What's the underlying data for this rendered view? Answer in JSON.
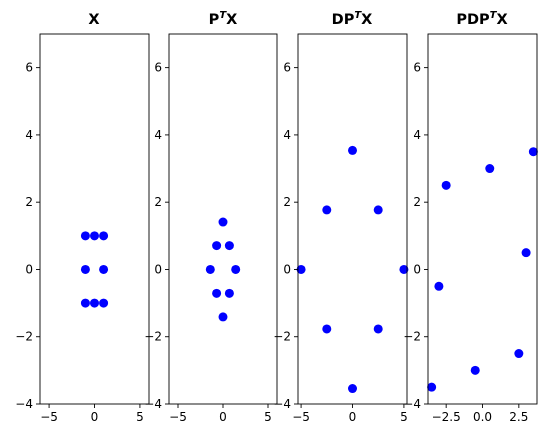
{
  "chart_data": [
    {
      "type": "scatter",
      "title": "X",
      "xlim": [
        -6,
        6
      ],
      "ylim": [
        -4,
        7
      ],
      "xticks": [
        -5,
        0,
        5
      ],
      "yticks": [
        -4,
        -2,
        0,
        2,
        4,
        6
      ],
      "xtick_labels": [
        "−5",
        "0",
        "5"
      ],
      "ytick_labels": [
        "−4",
        "−2",
        "0",
        "2",
        "4",
        "6"
      ],
      "grid": false,
      "color": "#0000ff",
      "points": [
        [
          -1,
          1
        ],
        [
          0,
          1
        ],
        [
          1,
          1
        ],
        [
          -1,
          0
        ],
        [
          1,
          0
        ],
        [
          -1,
          -1
        ],
        [
          0,
          -1
        ],
        [
          1,
          -1
        ]
      ]
    },
    {
      "type": "scatter",
      "title": "P",
      "title_sup": "T",
      "title_suffix": "X",
      "xlim": [
        -6,
        6
      ],
      "ylim": [
        -4,
        7
      ],
      "xticks": [
        -5,
        0,
        5
      ],
      "yticks": [
        -4,
        -2,
        0,
        2,
        4,
        6
      ],
      "xtick_labels": [
        "−5",
        "0",
        "5"
      ],
      "ytick_labels": [
        "−4",
        "−2",
        "0",
        "2",
        "4",
        "6"
      ],
      "grid": false,
      "color": "#0000ff",
      "points": [
        [
          0,
          1.41
        ],
        [
          -0.71,
          0.71
        ],
        [
          0.71,
          0.71
        ],
        [
          -1.41,
          0
        ],
        [
          1.41,
          0
        ],
        [
          -0.71,
          -0.71
        ],
        [
          0.71,
          -0.71
        ],
        [
          0,
          -1.41
        ]
      ]
    },
    {
      "type": "scatter",
      "title": "DP",
      "title_sup": "T",
      "title_suffix": "X",
      "xlim": [
        -5.3,
        5.3
      ],
      "ylim": [
        -4,
        7
      ],
      "xticks": [
        -5,
        0,
        5
      ],
      "yticks": [
        -4,
        -2,
        0,
        2,
        4,
        6
      ],
      "xtick_labels": [
        "−5",
        "0",
        "5"
      ],
      "ytick_labels": [
        "−4",
        "−2",
        "0",
        "2",
        "4",
        "6"
      ],
      "grid": false,
      "color": "#0000ff",
      "points": [
        [
          0,
          3.54
        ],
        [
          -2.5,
          1.77
        ],
        [
          2.5,
          1.77
        ],
        [
          -5,
          0
        ],
        [
          5,
          0
        ],
        [
          -2.5,
          -1.77
        ],
        [
          2.5,
          -1.77
        ],
        [
          0,
          -3.54
        ]
      ]
    },
    {
      "type": "scatter",
      "title": "PDP",
      "title_sup": "T",
      "title_suffix": "X",
      "xlim": [
        -3.75,
        3.75
      ],
      "ylim": [
        -4,
        7
      ],
      "xticks": [
        -2.5,
        0.0,
        2.5
      ],
      "yticks": [
        -4,
        -2,
        0,
        2,
        4,
        6
      ],
      "xtick_labels": [
        "−2.5",
        "0.0",
        "2.5"
      ],
      "ytick_labels": [
        "−4",
        "−2",
        "0",
        "2",
        "4",
        "6"
      ],
      "grid": false,
      "color": "#0000ff",
      "points": [
        [
          3.5,
          3.5
        ],
        [
          0.5,
          3.0
        ],
        [
          -2.5,
          2.5
        ],
        [
          3.0,
          0.5
        ],
        [
          -3.0,
          -0.5
        ],
        [
          2.5,
          -2.5
        ],
        [
          -0.5,
          -3.0
        ],
        [
          -3.5,
          -3.5
        ]
      ]
    }
  ]
}
